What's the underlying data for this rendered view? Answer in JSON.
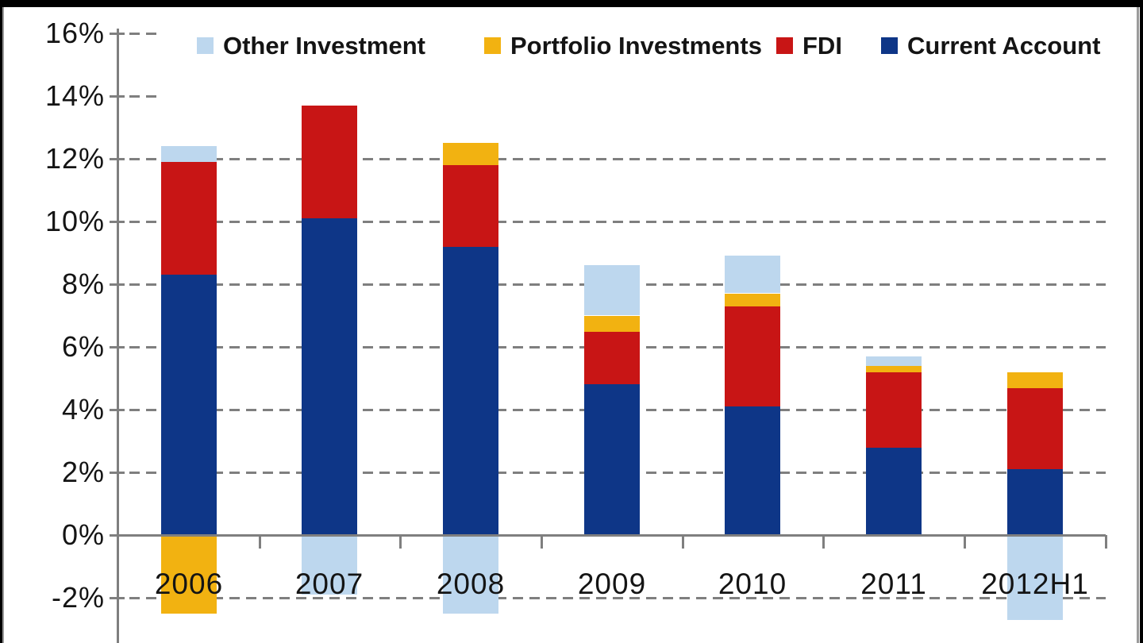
{
  "chart_data": {
    "type": "bar",
    "stacked": true,
    "title": "",
    "xlabel": "",
    "ylabel": "",
    "categories": [
      "2006",
      "2007",
      "2008",
      "2009",
      "2010",
      "2011",
      "2012H1"
    ],
    "series": [
      {
        "name": "Other Investment",
        "color": "#bdd7ee",
        "values": [
          0.5,
          -1.9,
          -2.5,
          1.6,
          1.2,
          0.3,
          -2.7
        ]
      },
      {
        "name": "Portfolio Investments",
        "color": "#f2b211",
        "values": [
          -2.5,
          0.0,
          0.7,
          0.5,
          0.4,
          0.2,
          0.5
        ]
      },
      {
        "name": "FDI",
        "color": "#c81515",
        "values": [
          3.6,
          3.6,
          2.6,
          1.7,
          3.2,
          2.4,
          2.6
        ]
      },
      {
        "name": "Current Account",
        "color": "#0e3687",
        "values": [
          8.3,
          10.1,
          9.2,
          4.8,
          4.1,
          2.8,
          2.1
        ]
      }
    ],
    "stack_order_bottom_to_top": [
      "Current Account",
      "FDI",
      "Portfolio Investments",
      "Other Investment"
    ],
    "y_ticks": [
      {
        "label": "16%",
        "value": 16
      },
      {
        "label": "14%",
        "value": 14
      },
      {
        "label": "12%",
        "value": 12
      },
      {
        "label": "10%",
        "value": 10
      },
      {
        "label": "8%",
        "value": 8
      },
      {
        "label": "6%",
        "value": 6
      },
      {
        "label": "4%",
        "value": 4
      },
      {
        "label": "2%",
        "value": 2
      },
      {
        "label": "0%",
        "value": 0
      },
      {
        "label": "-2%",
        "value": -2
      }
    ],
    "ylim": [
      -3.5,
      16
    ],
    "grid": "horizontal dashed",
    "legend_position": "top",
    "colors": {
      "grid": "#7f7f7f",
      "axis": "#7f7f7f",
      "text": "#141414",
      "background": "#ffffff"
    }
  }
}
